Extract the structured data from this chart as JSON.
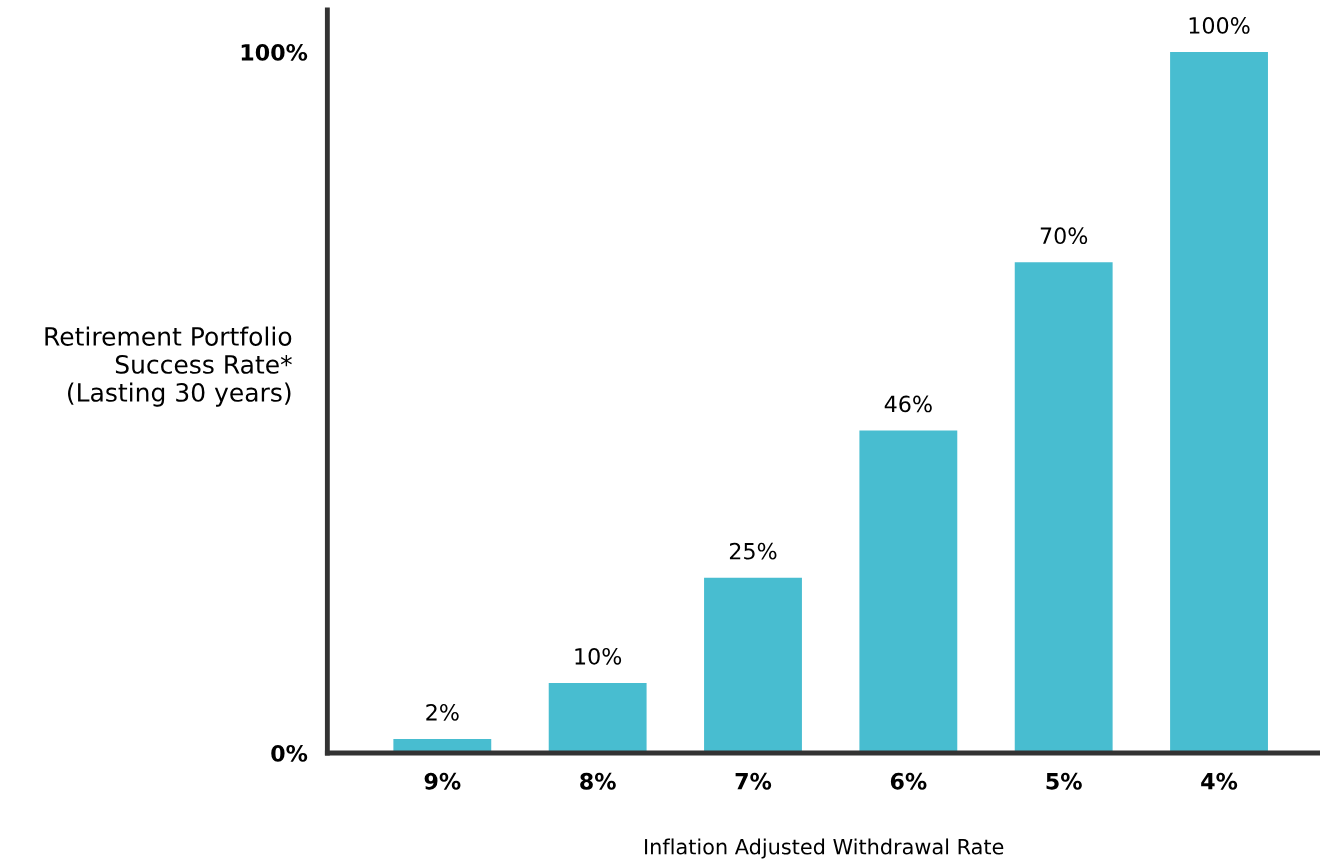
{
  "chart_data": {
    "type": "bar",
    "categories": [
      "9%",
      "8%",
      "7%",
      "6%",
      "5%",
      "4%"
    ],
    "values": [
      2,
      10,
      25,
      46,
      70,
      100
    ],
    "color": "#48bdd0",
    "ylim": [
      0,
      106
    ],
    "yticks": [
      {
        "value": 0,
        "label": "0%"
      },
      {
        "value": 100,
        "label": "100%"
      }
    ],
    "ylabel": "Retirement Portfolio\nSuccess Rate*\n(Lasting 30 years)",
    "xlabel": "Inflation Adjusted Withdrawal Rate",
    "value_labels": [
      "2%",
      "10%",
      "25%",
      "46%",
      "70%",
      "100%"
    ],
    "grid": false
  }
}
